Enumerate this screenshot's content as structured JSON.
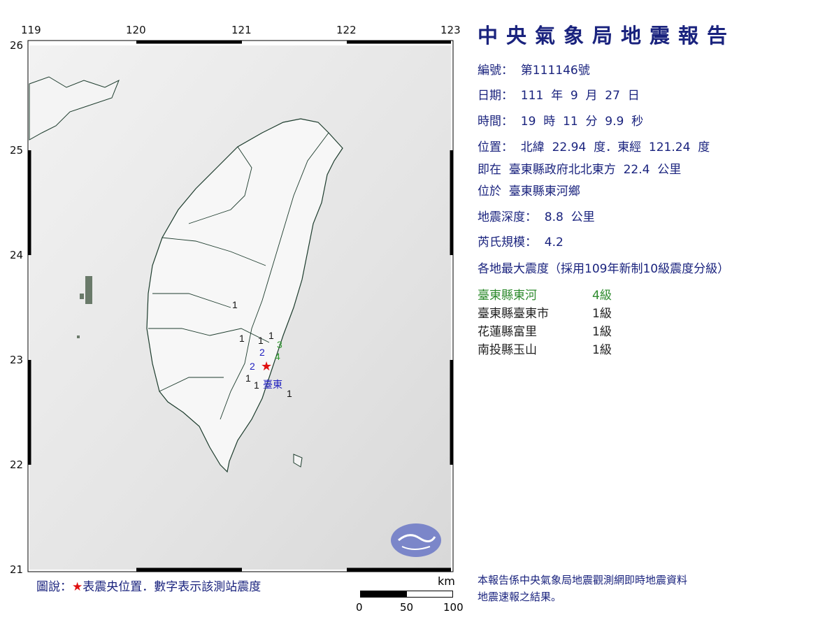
{
  "map": {
    "lon_ticks": [
      "119",
      "120",
      "121",
      "122",
      "123"
    ],
    "lat_ticks": [
      "26",
      "25",
      "24",
      "23",
      "22",
      "21"
    ],
    "epicenter": {
      "lat": 22.94,
      "lon": 121.24,
      "color": "#e01010"
    },
    "station_labels": [
      {
        "text": "1",
        "color": "#111111"
      },
      {
        "text": "1",
        "color": "#111111"
      },
      {
        "text": "1",
        "color": "#111111"
      },
      {
        "text": "1",
        "color": "#111111"
      },
      {
        "text": "2",
        "color": "#2020c0"
      },
      {
        "text": "3",
        "color": "#2e9a2e"
      },
      {
        "text": "4",
        "color": "#2e9a2e"
      },
      {
        "text": "2",
        "color": "#2020c0"
      },
      {
        "text": "1",
        "color": "#111111"
      },
      {
        "text": "1",
        "color": "#111111"
      },
      {
        "text": "1",
        "color": "#111111"
      }
    ],
    "city_label": "臺東",
    "legend": {
      "prefix": "圖說：",
      "star": "★",
      "text": "表震央位置．數字表示該測站震度"
    },
    "scale": {
      "unit": "km",
      "labels": [
        "0",
        "50",
        "100"
      ]
    }
  },
  "report": {
    "title": "中央氣象局地震報告",
    "number": "編號：  第111146號",
    "date": "日期：  111  年  9  月  27  日",
    "time": "時間：  19  時  11  分  9.9  秒",
    "position": "位置：  北緯  22.94  度．東經  121.24  度",
    "relative": "即在  臺東縣政府北北東方  22.4  公里",
    "located": "位於  臺東縣東河鄉",
    "depth": "地震深度：  8.8  公里",
    "magnitude": "芮氏規模：  4.2",
    "intensity_header": "各地最大震度（採用109年新制10級震度分級）",
    "intensities": [
      {
        "place": "臺東縣東河",
        "level": "4級",
        "color": "#2e8b2e"
      },
      {
        "place": "臺東縣臺東市",
        "level": "1級",
        "color": "#222222"
      },
      {
        "place": "花蓮縣富里",
        "level": "1級",
        "color": "#222222"
      },
      {
        "place": "南投縣玉山",
        "level": "1級",
        "color": "#222222"
      }
    ],
    "footer": [
      "本報告係中央氣象局地震觀測網即時地震資料",
      "地震速報之結果。"
    ]
  }
}
